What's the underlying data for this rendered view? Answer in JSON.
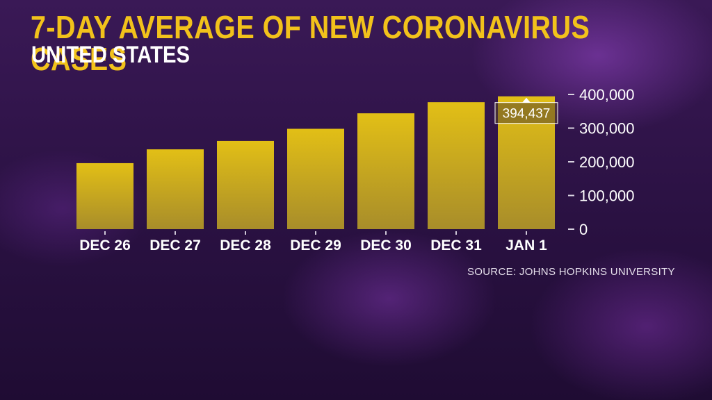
{
  "title": "7-DAY AVERAGE OF NEW CORONAVIRUS CASES",
  "subtitle": "UNITED STATES",
  "source": "SOURCE: JOHNS HOPKINS UNIVERSITY",
  "colors": {
    "bar": "#e2bf16",
    "title": "#f2c21b"
  },
  "chart_data": {
    "type": "bar",
    "title": "7-DAY AVERAGE OF NEW CORONAVIRUS CASES",
    "subtitle": "UNITED STATES",
    "categories": [
      "DEC 26",
      "DEC 27",
      "DEC 28",
      "DEC 29",
      "DEC 30",
      "DEC 31",
      "JAN 1"
    ],
    "values": [
      196000,
      237000,
      262000,
      298000,
      344000,
      377000,
      394437
    ],
    "y_ticks": [
      "400,000",
      "300,000",
      "200,000",
      "100,000",
      "0"
    ],
    "y_tick_values": [
      400000,
      300000,
      200000,
      100000,
      0
    ],
    "ylim": [
      0,
      400000
    ],
    "axis_side": "right",
    "grid": false,
    "data_labels": [
      {
        "category": "JAN 1",
        "text": "394,437"
      }
    ]
  }
}
